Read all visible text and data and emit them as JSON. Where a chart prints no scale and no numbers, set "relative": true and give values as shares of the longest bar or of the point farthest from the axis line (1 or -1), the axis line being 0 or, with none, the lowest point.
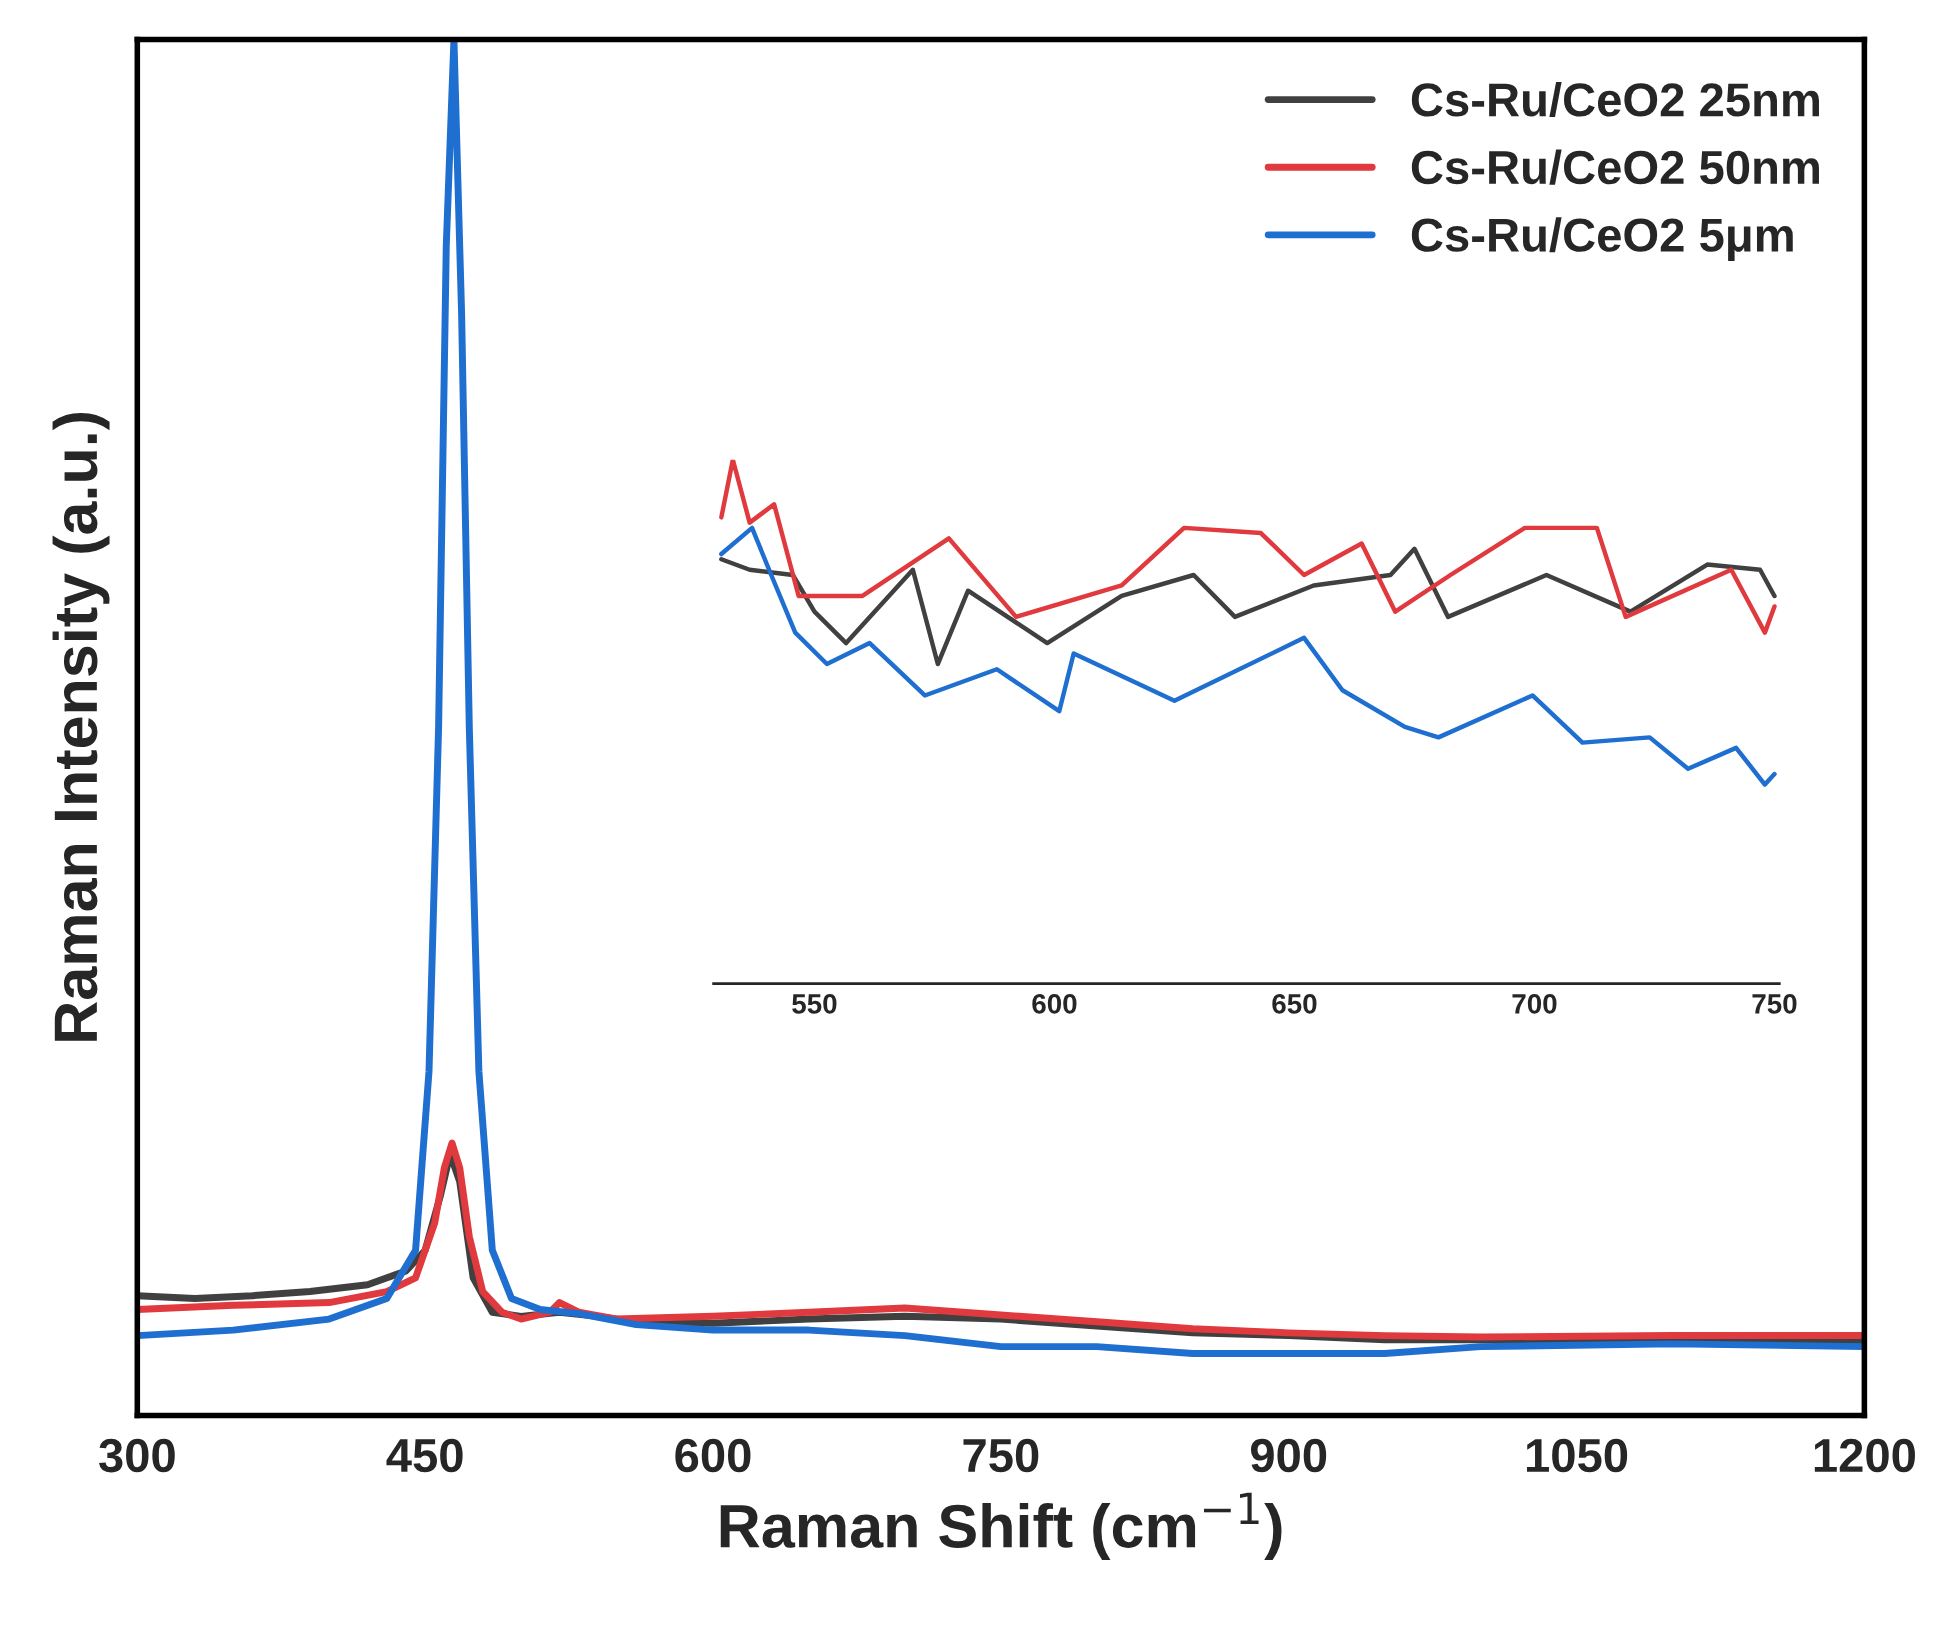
{
  "chart_data": [
    {
      "type": "line",
      "relative": true,
      "xlabel": "Raman Shift (cm$^{−1}$)",
      "ylabel": "Raman Intensity (a.u.)",
      "xlim": [
        300,
        1200
      ],
      "xticks": [
        300,
        450,
        600,
        750,
        900,
        1050,
        1200
      ],
      "legend": "top right",
      "tick_labels": "x",
      "series": [
        {
          "name": "Cs-Ru/CeO2 25nm",
          "color": "#404040",
          "x": [
            300,
            330,
            360,
            390,
            420,
            440,
            450,
            458,
            463,
            468,
            475,
            485,
            500,
            520,
            540,
            560,
            600,
            650,
            700,
            750,
            800,
            850,
            900,
            950,
            1000,
            1050,
            1100,
            1150,
            1200
          ],
          "values": [
            0.087,
            0.085,
            0.087,
            0.09,
            0.095,
            0.105,
            0.12,
            0.16,
            0.19,
            0.17,
            0.1,
            0.075,
            0.072,
            0.075,
            0.072,
            0.068,
            0.067,
            0.07,
            0.072,
            0.07,
            0.065,
            0.06,
            0.058,
            0.055,
            0.055,
            0.055,
            0.054,
            0.055,
            0.053
          ]
        },
        {
          "name": "Cs-Ru/CeO2 50nm",
          "color": "#e0393e",
          "x": [
            300,
            350,
            400,
            430,
            445,
            455,
            460,
            464,
            468,
            473,
            480,
            490,
            500,
            515,
            520,
            530,
            550,
            600,
            650,
            700,
            750,
            800,
            850,
            900,
            950,
            1000,
            1100,
            1200
          ],
          "values": [
            0.077,
            0.08,
            0.082,
            0.09,
            0.1,
            0.14,
            0.18,
            0.198,
            0.18,
            0.13,
            0.09,
            0.075,
            0.07,
            0.075,
            0.082,
            0.075,
            0.07,
            0.072,
            0.075,
            0.078,
            0.073,
            0.068,
            0.063,
            0.06,
            0.058,
            0.057,
            0.058,
            0.058
          ]
        },
        {
          "name": "Cs-Ru/CeO2 5μm",
          "color": "#1f6fd1",
          "x": [
            300,
            350,
            400,
            430,
            445,
            452,
            457,
            461,
            465,
            469,
            473,
            478,
            485,
            495,
            510,
            530,
            560,
            600,
            650,
            700,
            750,
            800,
            850,
            900,
            950,
            1000,
            1100,
            1200
          ],
          "values": [
            0.058,
            0.062,
            0.07,
            0.085,
            0.12,
            0.25,
            0.5,
            0.85,
            1,
            0.8,
            0.5,
            0.25,
            0.12,
            0.085,
            0.077,
            0.074,
            0.066,
            0.062,
            0.062,
            0.058,
            0.05,
            0.05,
            0.045,
            0.045,
            0.045,
            0.05,
            0.052,
            0.05
          ]
        }
      ]
    },
    {
      "type": "line",
      "relative": true,
      "xlim": [
        529,
        751
      ],
      "xticks": [
        550,
        600,
        650,
        700,
        750
      ],
      "tick_labels": "x",
      "series": [
        {
          "color": "#404040",
          "x": [
            530.6,
            536.5,
            545.5,
            550,
            556.6,
            570.5,
            575.7,
            582,
            598.5,
            614,
            629,
            637.6,
            654,
            670,
            675,
            682,
            702.5,
            720,
            736,
            747,
            750
          ],
          "values": [
            0.81,
            0.79,
            0.78,
            0.71,
            0.65,
            0.79,
            0.61,
            0.75,
            0.65,
            0.74,
            0.78,
            0.7,
            0.76,
            0.78,
            0.83,
            0.7,
            0.78,
            0.71,
            0.8,
            0.79,
            0.74
          ]
        },
        {
          "color": "#e0393e",
          "x": [
            530.6,
            533,
            536.5,
            541.6,
            546.7,
            560,
            578,
            592,
            614,
            627,
            643,
            652,
            664,
            671,
            682.5,
            698,
            713,
            719,
            741,
            748,
            750
          ],
          "values": [
            0.89,
            1,
            0.88,
            0.915,
            0.74,
            0.74,
            0.85,
            0.7,
            0.76,
            0.87,
            0.86,
            0.78,
            0.84,
            0.71,
            0.78,
            0.87,
            0.87,
            0.7,
            0.79,
            0.67,
            0.72
          ]
        },
        {
          "color": "#1f6fd1",
          "x": [
            530.6,
            537,
            541,
            546,
            552.6,
            561.5,
            573,
            588,
            601,
            604,
            625,
            652,
            660,
            673,
            680,
            699.6,
            710,
            724,
            732,
            742,
            748,
            750
          ],
          "values": [
            0.82,
            0.87,
            0.78,
            0.67,
            0.61,
            0.65,
            0.55,
            0.6,
            0.52,
            0.63,
            0.54,
            0.66,
            0.56,
            0.49,
            0.47,
            0.55,
            0.46,
            0.47,
            0.41,
            0.45,
            0.38,
            0.4
          ]
        }
      ]
    }
  ]
}
